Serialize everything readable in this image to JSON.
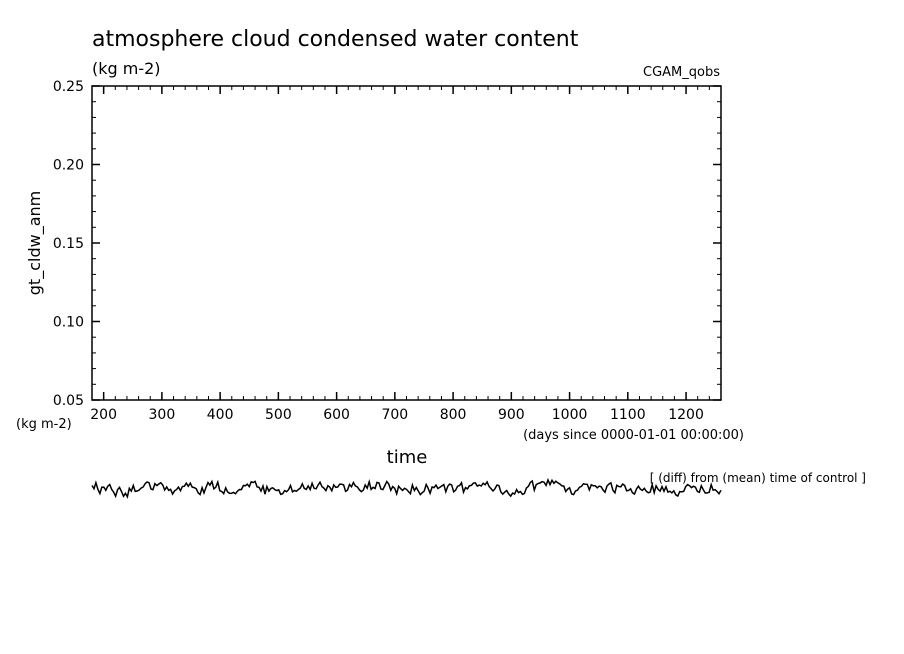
{
  "chart_data": {
    "type": "line",
    "title": "atmosphere cloud condensed water content",
    "subtitle": "(kg m-2)",
    "run_label": "CGAM_qobs",
    "ylabel": "gt_cldw_anm",
    "yunits": "(kg m-2)",
    "xlabel": "time",
    "xunits": "(days since 0000-01-01 00:00:00)",
    "ylim": [
      0.05,
      0.25
    ],
    "xlim": [
      180,
      1260
    ],
    "yticks": [
      "0.05",
      "0.10",
      "0.15",
      "0.20",
      "0.25"
    ],
    "xticks": [
      "200",
      "300",
      "400",
      "500",
      "600",
      "700",
      "800",
      "900",
      "1000",
      "1100",
      "1200"
    ],
    "grid": false,
    "series": [
      {
        "values": []
      }
    ],
    "inset": {
      "label": "[ (diff) from (mean) time of control ]",
      "type": "line",
      "x_range": [
        180,
        1260
      ],
      "description_values": "noisy anomaly series near zero"
    }
  }
}
